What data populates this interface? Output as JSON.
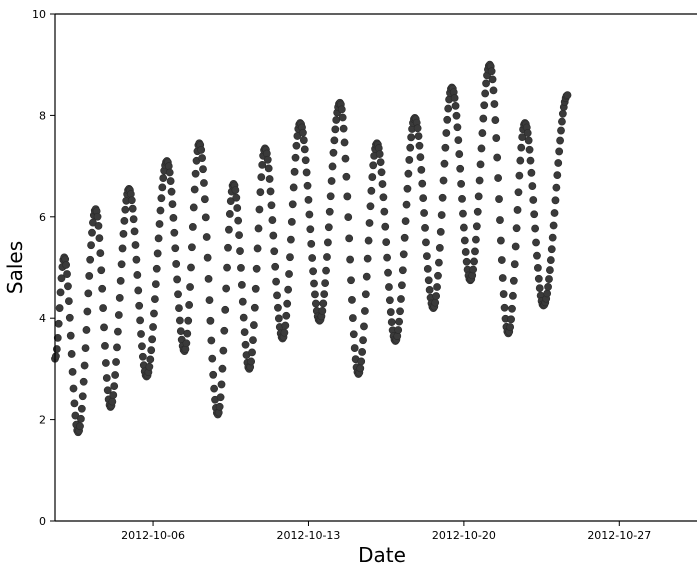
{
  "chart_data": {
    "type": "scatter",
    "title": "",
    "xlabel": "Date",
    "ylabel": "Sales",
    "xlim": [
      "2012-10-01T14:00",
      "2012-10-30T12:00"
    ],
    "ylim": [
      0,
      10
    ],
    "x_ticks": [
      "2012-10-06",
      "2012-10-13",
      "2012-10-20",
      "2012-10-27"
    ],
    "y_ticks": [
      0,
      2,
      4,
      6,
      8,
      10
    ],
    "grid": false,
    "legend": "none",
    "marker_color": "#3a3a3a",
    "series": [
      {
        "x_start": "2012-10-01T14:00",
        "x_end": "2012-10-24T16:00",
        "x_step_hours": 1,
        "y_keypoints": [
          [
            "2012-10-01T14:00",
            3.2
          ],
          [
            "2012-10-02T00:00",
            5.2
          ],
          [
            "2012-10-02T15:00",
            1.75
          ],
          [
            "2012-10-03T10:00",
            6.15
          ],
          [
            "2012-10-04T02:00",
            2.25
          ],
          [
            "2012-10-04T22:00",
            6.55
          ],
          [
            "2012-10-05T17:00",
            2.85
          ],
          [
            "2012-10-06T15:00",
            7.1
          ],
          [
            "2012-10-07T10:00",
            3.35
          ],
          [
            "2012-10-08T02:00",
            7.45
          ],
          [
            "2012-10-08T22:00",
            2.1
          ],
          [
            "2012-10-09T15:00",
            6.65
          ],
          [
            "2012-10-10T08:00",
            3.0
          ],
          [
            "2012-10-11T01:00",
            7.35
          ],
          [
            "2012-10-11T20:00",
            3.6
          ],
          [
            "2012-10-12T15:00",
            7.85
          ],
          [
            "2012-10-13T12:00",
            3.95
          ],
          [
            "2012-10-14T10:00",
            8.25
          ],
          [
            "2012-10-15T06:00",
            2.9
          ],
          [
            "2012-10-16T02:00",
            7.45
          ],
          [
            "2012-10-16T22:00",
            3.55
          ],
          [
            "2012-10-17T19:00",
            7.95
          ],
          [
            "2012-10-18T15:00",
            4.2
          ],
          [
            "2012-10-19T11:00",
            8.55
          ],
          [
            "2012-10-20T07:00",
            4.75
          ],
          [
            "2012-10-21T04:00",
            9.0
          ],
          [
            "2012-10-22T00:00",
            3.7
          ],
          [
            "2012-10-22T18:00",
            7.85
          ],
          [
            "2012-10-23T14:00",
            4.25
          ],
          [
            "2012-10-24T16:00",
            8.4
          ]
        ]
      }
    ]
  }
}
